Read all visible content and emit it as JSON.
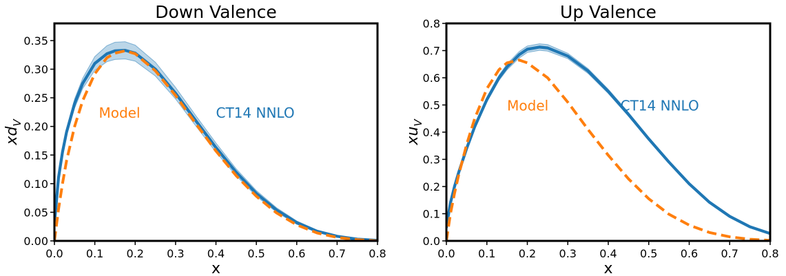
{
  "chart_data": [
    {
      "type": "line",
      "title": "Down Valence",
      "xlabel": "x",
      "ylabel_base": "xd",
      "ylabel_sub": "V",
      "xlim": [
        0.0,
        0.8
      ],
      "ylim": [
        0.0,
        0.38
      ],
      "xticks": [
        0.0,
        0.1,
        0.2,
        0.3,
        0.4,
        0.5,
        0.6,
        0.7,
        0.8
      ],
      "xtick_labels": [
        "0.0",
        "0.1",
        "0.2",
        "0.3",
        "0.4",
        "0.5",
        "0.6",
        "0.7",
        "0.8"
      ],
      "yticks": [
        0.0,
        0.05,
        0.1,
        0.15,
        0.2,
        0.25,
        0.3,
        0.35
      ],
      "ytick_labels": [
        "0.00",
        "0.05",
        "0.10",
        "0.15",
        "0.20",
        "0.25",
        "0.30",
        "0.35"
      ],
      "grid": false,
      "series": [
        {
          "name": "CT14 NNLO",
          "color": "#1f77b4",
          "style": "solid",
          "x": [
            0.0,
            0.01,
            0.02,
            0.03,
            0.05,
            0.07,
            0.1,
            0.13,
            0.15,
            0.175,
            0.2,
            0.25,
            0.3,
            0.35,
            0.4,
            0.45,
            0.5,
            0.55,
            0.6,
            0.65,
            0.7,
            0.75,
            0.8
          ],
          "y": [
            0.03,
            0.11,
            0.155,
            0.19,
            0.24,
            0.275,
            0.31,
            0.327,
            0.332,
            0.333,
            0.328,
            0.3,
            0.258,
            0.21,
            0.163,
            0.12,
            0.083,
            0.054,
            0.032,
            0.017,
            0.008,
            0.003,
            0.001
          ],
          "band_half_width": [
            0.0,
            0.003,
            0.005,
            0.006,
            0.008,
            0.009,
            0.012,
            0.014,
            0.015,
            0.015,
            0.014,
            0.012,
            0.01,
            0.009,
            0.008,
            0.006,
            0.005,
            0.004,
            0.003,
            0.002,
            0.0015,
            0.001,
            0.0005
          ]
        },
        {
          "name": "Model",
          "color": "#ff7f0e",
          "style": "dashed",
          "x": [
            0.0,
            0.01,
            0.02,
            0.03,
            0.05,
            0.07,
            0.1,
            0.13,
            0.15,
            0.175,
            0.2,
            0.25,
            0.3,
            0.35,
            0.4,
            0.45,
            0.5,
            0.55,
            0.6,
            0.65,
            0.7,
            0.75,
            0.8
          ],
          "y": [
            0.0,
            0.055,
            0.1,
            0.14,
            0.2,
            0.245,
            0.292,
            0.32,
            0.328,
            0.332,
            0.327,
            0.297,
            0.254,
            0.205,
            0.157,
            0.114,
            0.078,
            0.049,
            0.028,
            0.014,
            0.006,
            0.002,
            0.0
          ]
        }
      ],
      "annotations": [
        {
          "text": "Model",
          "x": 0.11,
          "y": 0.225,
          "color": "#ff7f0e"
        },
        {
          "text": "CT14 NNLO",
          "x": 0.4,
          "y": 0.225,
          "color": "#1f77b4"
        }
      ]
    },
    {
      "type": "line",
      "title": "Up Valence",
      "xlabel": "x",
      "ylabel_base": "xu",
      "ylabel_sub": "V",
      "xlim": [
        0.0,
        0.8
      ],
      "ylim": [
        0.0,
        0.8
      ],
      "xticks": [
        0.0,
        0.1,
        0.2,
        0.3,
        0.4,
        0.5,
        0.6,
        0.7,
        0.8
      ],
      "xtick_labels": [
        "0.0",
        "0.1",
        "0.2",
        "0.3",
        "0.4",
        "0.5",
        "0.6",
        "0.7",
        "0.8"
      ],
      "yticks": [
        0.0,
        0.1,
        0.2,
        0.3,
        0.4,
        0.5,
        0.6,
        0.7,
        0.8
      ],
      "ytick_labels": [
        "0.0",
        "0.1",
        "0.2",
        "0.3",
        "0.4",
        "0.5",
        "0.6",
        "0.7",
        "0.8"
      ],
      "grid": false,
      "series": [
        {
          "name": "CT14 NNLO",
          "color": "#1f77b4",
          "style": "solid",
          "x": [
            0.0,
            0.01,
            0.02,
            0.03,
            0.05,
            0.07,
            0.1,
            0.13,
            0.15,
            0.18,
            0.2,
            0.23,
            0.25,
            0.3,
            0.35,
            0.4,
            0.45,
            0.5,
            0.55,
            0.6,
            0.65,
            0.7,
            0.75,
            0.8
          ],
          "y": [
            0.05,
            0.14,
            0.2,
            0.25,
            0.34,
            0.42,
            0.52,
            0.6,
            0.64,
            0.685,
            0.705,
            0.713,
            0.71,
            0.68,
            0.625,
            0.55,
            0.465,
            0.375,
            0.29,
            0.21,
            0.142,
            0.09,
            0.052,
            0.027
          ],
          "band_half_width": [
            0.0,
            0.004,
            0.005,
            0.006,
            0.007,
            0.008,
            0.009,
            0.01,
            0.011,
            0.012,
            0.012,
            0.012,
            0.012,
            0.01,
            0.009,
            0.008,
            0.007,
            0.006,
            0.005,
            0.004,
            0.003,
            0.002,
            0.0015,
            0.001
          ]
        },
        {
          "name": "Model",
          "color": "#ff7f0e",
          "style": "dashed",
          "x": [
            0.0,
            0.01,
            0.02,
            0.03,
            0.05,
            0.07,
            0.1,
            0.13,
            0.15,
            0.18,
            0.2,
            0.25,
            0.3,
            0.35,
            0.4,
            0.45,
            0.5,
            0.55,
            0.6,
            0.65,
            0.7,
            0.75,
            0.8
          ],
          "y": [
            0.0,
            0.1,
            0.175,
            0.24,
            0.355,
            0.45,
            0.56,
            0.63,
            0.655,
            0.665,
            0.655,
            0.6,
            0.51,
            0.41,
            0.315,
            0.228,
            0.155,
            0.098,
            0.058,
            0.031,
            0.015,
            0.006,
            0.002
          ]
        }
      ],
      "annotations": [
        {
          "text": "Model",
          "x": 0.15,
          "y": 0.5,
          "color": "#ff7f0e"
        },
        {
          "text": "CT14 NNLO",
          "x": 0.43,
          "y": 0.5,
          "color": "#1f77b4"
        }
      ]
    }
  ]
}
